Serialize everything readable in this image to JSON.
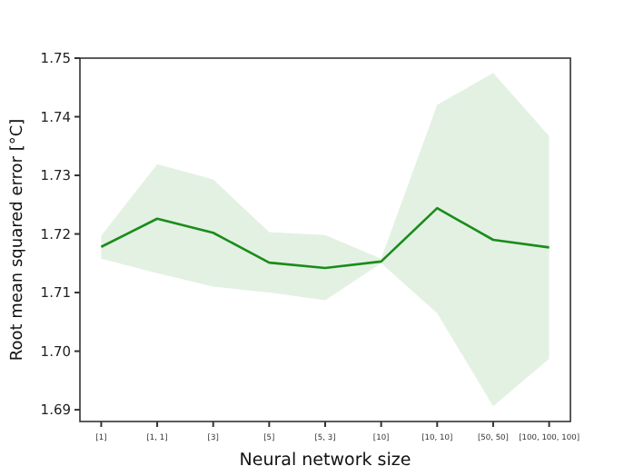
{
  "chart_data": {
    "type": "line",
    "xlabel": "Neural network size",
    "ylabel": "Root mean squared error [°C]",
    "categories": [
      "[1]",
      "[1, 1]",
      "[3]",
      "[5]",
      "[5, 3]",
      "[10]",
      "[10, 10]",
      "[50, 50]",
      "[100, 100, 100]"
    ],
    "series": [
      {
        "color": "#1a8c1a",
        "values": [
          1.7178,
          1.7226,
          1.7202,
          1.7151,
          1.7142,
          1.7153,
          1.7244,
          1.719,
          1.7177
        ],
        "lower": [
          1.7158,
          1.7133,
          1.711,
          1.71,
          1.7087,
          1.715,
          1.7065,
          1.6906,
          1.6987
        ],
        "upper": [
          1.7197,
          1.7319,
          1.7293,
          1.7203,
          1.7198,
          1.7158,
          1.742,
          1.7475,
          1.7367
        ]
      }
    ],
    "ylim": [
      1.688,
      1.75
    ],
    "yticks": [
      1.69,
      {
        "value": 1.7,
        "label": "1.70"
      },
      1.71,
      1.72,
      1.73,
      1.74,
      1.75
    ],
    "grid": false,
    "marker": "none",
    "line_style": "solid"
  }
}
